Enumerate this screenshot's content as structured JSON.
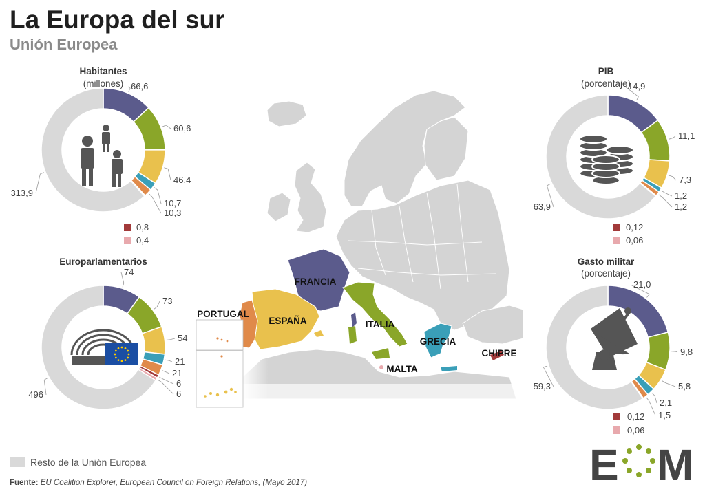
{
  "header": {
    "title": "La Europa del sur",
    "subtitle": "Unión Europea"
  },
  "colors": {
    "francia": "#5b5b8c",
    "italia": "#8aa629",
    "espana": "#e9c14d",
    "grecia": "#3a9fb8",
    "portugal": "#e08a4a",
    "chipre": "#a23a3a",
    "malta": "#e8a9ad",
    "resto": "#d9d9d9",
    "land": "#d4d4d4",
    "icon": "#555555",
    "eu_flag": "#1b4ea3"
  },
  "map": {
    "labels": {
      "francia": "FRANCIA",
      "espana": "ESPAÑA",
      "portugal": "PORTUGAL",
      "italia": "ITALIA",
      "grecia": "GRECIA",
      "malta": "MALTA",
      "chipre": "CHIPRE"
    }
  },
  "chart_data": [
    {
      "type": "pie",
      "variant": "donut",
      "title": "Habitantes",
      "subtitle": "(millones)",
      "icon": "people-icon",
      "categories": [
        "Francia",
        "Italia",
        "España",
        "Grecia",
        "Portugal",
        "Chipre",
        "Malta",
        "Resto de la Unión Europea"
      ],
      "values": [
        66.6,
        60.6,
        46.4,
        10.7,
        10.3,
        0.8,
        0.4,
        313.9
      ],
      "labels": [
        "66,6",
        "60,6",
        "46,4",
        "10,7",
        "10,3",
        "0,8",
        "0,4",
        "313,9"
      ]
    },
    {
      "type": "pie",
      "variant": "donut",
      "title": "PIB",
      "subtitle": "(porcentaje)",
      "icon": "coins-icon",
      "categories": [
        "Francia",
        "Italia",
        "España",
        "Grecia",
        "Portugal",
        "Chipre",
        "Malta",
        "Resto de la Unión Europea"
      ],
      "values": [
        14.9,
        11.1,
        7.3,
        1.2,
        1.2,
        0.12,
        0.06,
        63.9
      ],
      "labels": [
        "14,9",
        "11,1",
        "7,3",
        "1,2",
        "1,2",
        "0,12",
        "0,06",
        "63,9"
      ]
    },
    {
      "type": "pie",
      "variant": "donut",
      "title": "Europarlamentarios",
      "subtitle": "",
      "icon": "parliament-icon",
      "categories": [
        "Francia",
        "Italia",
        "España",
        "Grecia",
        "Portugal",
        "Chipre",
        "Malta",
        "Resto de la Unión Europea"
      ],
      "values": [
        74,
        73,
        54,
        21,
        21,
        6,
        6,
        496
      ],
      "labels": [
        "74",
        "73",
        "54",
        "21",
        "21",
        "6",
        "6",
        "496"
      ]
    },
    {
      "type": "pie",
      "variant": "donut",
      "title": "Gasto militar",
      "subtitle": "(porcentaje)",
      "icon": "satellite-dish-icon",
      "categories": [
        "Francia",
        "Italia",
        "España",
        "Grecia",
        "Portugal",
        "Chipre",
        "Malta",
        "Resto de la Unión Europea"
      ],
      "values": [
        21.0,
        9.8,
        5.8,
        2.1,
        1.5,
        0.12,
        0.06,
        59.3
      ],
      "labels": [
        "21,0",
        "9,8",
        "5,8",
        "2,1",
        "1,5",
        "0,12",
        "0,06",
        "59,3"
      ]
    }
  ],
  "legend": {
    "rest_label": "Resto de la Unión Europea"
  },
  "footer": {
    "source_label": "Fuente:",
    "source_text": "EU Coalition Explorer, European Council on Foreign Relations, (Mayo 2017)",
    "logo_text": "EOM"
  }
}
